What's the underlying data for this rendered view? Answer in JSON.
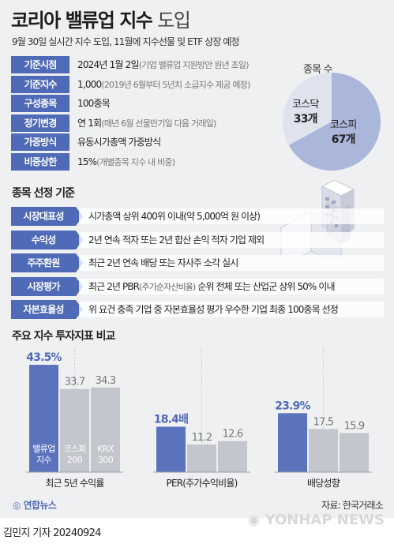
{
  "header": {
    "title_bold": "코리아 밸류업 지수",
    "title_light": "도입",
    "subtitle": "9월 30일 실시간 지수 도입, 11월에 지수선물 및 ETF 상장 예정"
  },
  "info": [
    {
      "label": "기준시점",
      "value": "2024년 1월 2일",
      "note": "(기업 밸류업 지원방안 원년 초일)"
    },
    {
      "label": "기준지수",
      "value": "1,000",
      "note": "(2019년 6월부터 5년치 소급지수 제공 예정)"
    },
    {
      "label": "구성종목",
      "value": "100종목",
      "note": ""
    },
    {
      "label": "정기변경",
      "value": "연 1회",
      "note": "(매년 6월 선물만기일 다음 거래일)"
    },
    {
      "label": "가중방식",
      "value": "유동시가총액 가중방식",
      "note": ""
    },
    {
      "label": "비중상한",
      "value": "15%",
      "note": "(개별종목 지수 내 비중)"
    }
  ],
  "pie": {
    "title": "종목 수",
    "slices": [
      {
        "name": "코스피",
        "value": 67,
        "value_label": "67개",
        "color": "#aab6da"
      },
      {
        "name": "코스닥",
        "value": 33,
        "value_label": "33개",
        "color": "#dfe3ee"
      }
    ]
  },
  "criteria": {
    "heading": "종목 선정 기준",
    "items": [
      {
        "label": "시장대표성",
        "text": "시가총액 상위 400위 이내(약 5,000억 원 이상)",
        "note": "",
        "text_after": ""
      },
      {
        "label": "수익성",
        "text": "2년 연속 적자 또는 2년 합산 손익 적자 기업 제외",
        "note": "",
        "text_after": ""
      },
      {
        "label": "주주환원",
        "text": "최근 2년 연속 배당 또는 자사주 소각 실시",
        "note": "",
        "text_after": ""
      },
      {
        "label": "시장평가",
        "text": "최근 2년 PBR",
        "note": "(주가순자산비율)",
        "text_after": " 순위 전체 또는 산업군 상위 50% 이내"
      },
      {
        "label": "자본효율성",
        "text": "위 요건 충족 기업 중 자본효율성 평가 우수한 기업 최종 100종목 선정",
        "note": "",
        "text_after": ""
      }
    ]
  },
  "chart_data": {
    "type": "bar",
    "title": "주요 지수 투자지표 비교",
    "legend": [
      "밸류업 지수",
      "코스피 200",
      "KRX 300"
    ],
    "colors": {
      "highlight": "#5b73bd",
      "other": "#c3c6cc",
      "highlight_label": "#4f6ab6",
      "other_label": "#777777"
    },
    "groups": [
      {
        "name": "최근 5년 수익률",
        "values": [
          43.5,
          33.7,
          34.3
        ],
        "labels": [
          "43.5%",
          "33.7",
          "34.3"
        ]
      },
      {
        "name": "PER(주가수익비율)",
        "values": [
          18.4,
          11.2,
          12.6
        ],
        "labels": [
          "18.4배",
          "11.2",
          "12.6"
        ]
      },
      {
        "name": "배당성향",
        "values": [
          23.9,
          17.5,
          15.9
        ],
        "labels": [
          "23.9%",
          "17.5",
          "15.9"
        ]
      }
    ]
  },
  "footer": {
    "logo": "연합뉴스",
    "source": "자료: 한국거래소",
    "byline": "김민지 기자  20240924",
    "watermark": "YONHAP NEWS"
  }
}
